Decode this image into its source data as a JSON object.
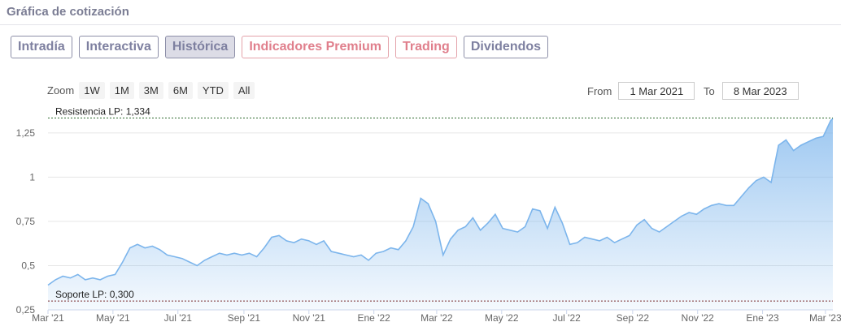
{
  "section_title": "Gráfica de cotización",
  "tabs": [
    {
      "label": "Intradía",
      "state": "normal"
    },
    {
      "label": "Interactiva",
      "state": "normal"
    },
    {
      "label": "Histórica",
      "state": "active"
    },
    {
      "label": "Indicadores Premium",
      "state": "premium"
    },
    {
      "label": "Trading",
      "state": "premium"
    },
    {
      "label": "Dividendos",
      "state": "normal"
    }
  ],
  "zoom": {
    "label": "Zoom",
    "buttons": [
      "1W",
      "1M",
      "3M",
      "6M",
      "YTD",
      "All"
    ]
  },
  "range": {
    "from_label": "From",
    "from_value": "1 Mar 2021",
    "to_label": "To",
    "to_value": "8 Mar 2023"
  },
  "colors": {
    "line": "#7cb5ec",
    "resistance_line": "#2e6b2e",
    "support_line": "#7a2e2e",
    "tab_border": "#8d8fa8",
    "tab_premium": "#e07f8c"
  },
  "chart_data": {
    "type": "area",
    "title": "",
    "xlabel": "",
    "ylabel": "",
    "ylim": [
      0.25,
      1.35
    ],
    "y_ticks": [
      0.25,
      0.5,
      0.75,
      1,
      1.25
    ],
    "y_tick_labels": [
      "0,25",
      "0,5",
      "0,75",
      "1",
      "1,25"
    ],
    "x_ticks": [
      {
        "date": "2021-03-01",
        "label": "Mar '21"
      },
      {
        "date": "2021-05-01",
        "label": "May '21"
      },
      {
        "date": "2021-07-01",
        "label": "Jul '21"
      },
      {
        "date": "2021-09-01",
        "label": "Sep '21"
      },
      {
        "date": "2021-11-01",
        "label": "Nov '21"
      },
      {
        "date": "2022-01-01",
        "label": "Ene '22"
      },
      {
        "date": "2022-03-01",
        "label": "Mar '22"
      },
      {
        "date": "2022-05-01",
        "label": "May '22"
      },
      {
        "date": "2022-07-01",
        "label": "Jul '22"
      },
      {
        "date": "2022-09-01",
        "label": "Sep '22"
      },
      {
        "date": "2022-11-01",
        "label": "Nov '22"
      },
      {
        "date": "2023-01-01",
        "label": "Ene '23"
      },
      {
        "date": "2023-03-01",
        "label": "Mar '23"
      }
    ],
    "x_range": [
      "2021-03-01",
      "2023-03-08"
    ],
    "grid": true,
    "reference_lines": [
      {
        "label": "Resistencia LP: 1,334",
        "value": 1.334
      },
      {
        "label": "Soporte LP: 0,300",
        "value": 0.3
      }
    ],
    "series": [
      {
        "points": [
          [
            "2021-03-01",
            0.39
          ],
          [
            "2021-03-08",
            0.42
          ],
          [
            "2021-03-15",
            0.44
          ],
          [
            "2021-03-22",
            0.43
          ],
          [
            "2021-03-29",
            0.45
          ],
          [
            "2021-04-05",
            0.42
          ],
          [
            "2021-04-12",
            0.43
          ],
          [
            "2021-04-19",
            0.42
          ],
          [
            "2021-04-26",
            0.44
          ],
          [
            "2021-05-03",
            0.45
          ],
          [
            "2021-05-10",
            0.52
          ],
          [
            "2021-05-17",
            0.6
          ],
          [
            "2021-05-24",
            0.62
          ],
          [
            "2021-05-31",
            0.6
          ],
          [
            "2021-06-07",
            0.61
          ],
          [
            "2021-06-14",
            0.59
          ],
          [
            "2021-06-21",
            0.56
          ],
          [
            "2021-06-28",
            0.55
          ],
          [
            "2021-07-05",
            0.54
          ],
          [
            "2021-07-12",
            0.52
          ],
          [
            "2021-07-19",
            0.5
          ],
          [
            "2021-07-26",
            0.53
          ],
          [
            "2021-08-02",
            0.55
          ],
          [
            "2021-08-09",
            0.57
          ],
          [
            "2021-08-16",
            0.56
          ],
          [
            "2021-08-23",
            0.57
          ],
          [
            "2021-08-30",
            0.56
          ],
          [
            "2021-09-06",
            0.57
          ],
          [
            "2021-09-13",
            0.55
          ],
          [
            "2021-09-20",
            0.6
          ],
          [
            "2021-09-27",
            0.66
          ],
          [
            "2021-10-04",
            0.67
          ],
          [
            "2021-10-11",
            0.64
          ],
          [
            "2021-10-18",
            0.63
          ],
          [
            "2021-10-25",
            0.65
          ],
          [
            "2021-11-01",
            0.64
          ],
          [
            "2021-11-08",
            0.62
          ],
          [
            "2021-11-15",
            0.64
          ],
          [
            "2021-11-22",
            0.58
          ],
          [
            "2021-11-29",
            0.57
          ],
          [
            "2021-12-06",
            0.56
          ],
          [
            "2021-12-13",
            0.55
          ],
          [
            "2021-12-20",
            0.56
          ],
          [
            "2021-12-27",
            0.53
          ],
          [
            "2022-01-03",
            0.57
          ],
          [
            "2022-01-10",
            0.58
          ],
          [
            "2022-01-17",
            0.6
          ],
          [
            "2022-01-24",
            0.59
          ],
          [
            "2022-01-31",
            0.64
          ],
          [
            "2022-02-07",
            0.72
          ],
          [
            "2022-02-14",
            0.88
          ],
          [
            "2022-02-21",
            0.85
          ],
          [
            "2022-02-28",
            0.75
          ],
          [
            "2022-03-07",
            0.56
          ],
          [
            "2022-03-14",
            0.65
          ],
          [
            "2022-03-21",
            0.7
          ],
          [
            "2022-03-28",
            0.72
          ],
          [
            "2022-04-04",
            0.77
          ],
          [
            "2022-04-11",
            0.7
          ],
          [
            "2022-04-18",
            0.74
          ],
          [
            "2022-04-25",
            0.79
          ],
          [
            "2022-05-02",
            0.71
          ],
          [
            "2022-05-09",
            0.7
          ],
          [
            "2022-05-16",
            0.69
          ],
          [
            "2022-05-23",
            0.72
          ],
          [
            "2022-05-30",
            0.82
          ],
          [
            "2022-06-06",
            0.81
          ],
          [
            "2022-06-13",
            0.71
          ],
          [
            "2022-06-20",
            0.83
          ],
          [
            "2022-06-27",
            0.74
          ],
          [
            "2022-07-04",
            0.62
          ],
          [
            "2022-07-11",
            0.63
          ],
          [
            "2022-07-18",
            0.66
          ],
          [
            "2022-07-25",
            0.65
          ],
          [
            "2022-08-01",
            0.64
          ],
          [
            "2022-08-08",
            0.66
          ],
          [
            "2022-08-15",
            0.63
          ],
          [
            "2022-08-22",
            0.65
          ],
          [
            "2022-08-29",
            0.67
          ],
          [
            "2022-09-05",
            0.73
          ],
          [
            "2022-09-12",
            0.76
          ],
          [
            "2022-09-19",
            0.71
          ],
          [
            "2022-09-26",
            0.69
          ],
          [
            "2022-10-03",
            0.72
          ],
          [
            "2022-10-10",
            0.75
          ],
          [
            "2022-10-17",
            0.78
          ],
          [
            "2022-10-24",
            0.8
          ],
          [
            "2022-10-31",
            0.79
          ],
          [
            "2022-11-07",
            0.82
          ],
          [
            "2022-11-14",
            0.84
          ],
          [
            "2022-11-21",
            0.85
          ],
          [
            "2022-11-28",
            0.84
          ],
          [
            "2022-12-05",
            0.84
          ],
          [
            "2022-12-12",
            0.89
          ],
          [
            "2022-12-19",
            0.94
          ],
          [
            "2022-12-26",
            0.98
          ],
          [
            "2023-01-02",
            1.0
          ],
          [
            "2023-01-09",
            0.97
          ],
          [
            "2023-01-16",
            1.18
          ],
          [
            "2023-01-23",
            1.21
          ],
          [
            "2023-01-30",
            1.15
          ],
          [
            "2023-02-06",
            1.18
          ],
          [
            "2023-02-13",
            1.2
          ],
          [
            "2023-02-20",
            1.22
          ],
          [
            "2023-02-27",
            1.23
          ],
          [
            "2023-03-06",
            1.32
          ],
          [
            "2023-03-08",
            1.33
          ]
        ]
      }
    ]
  }
}
